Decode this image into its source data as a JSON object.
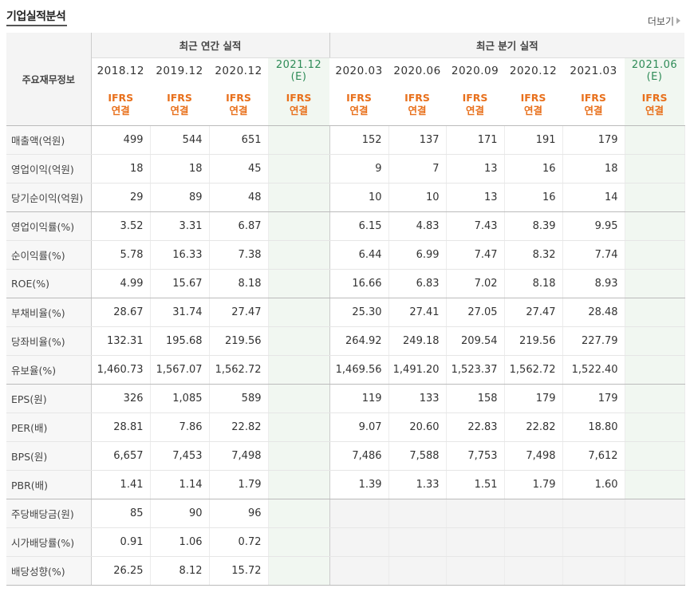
{
  "header": {
    "title": "기업실적분석",
    "more_label": "더보기"
  },
  "table": {
    "label_header": "주요재무정보",
    "group_annual": "최근 연간 실적",
    "group_quarter": "최근 분기 실적",
    "periods": [
      {
        "date": "2018.12"
      },
      {
        "date": "2019.12"
      },
      {
        "date": "2020.12"
      },
      {
        "date": "2021.12",
        "sub": "(E)"
      },
      {
        "date": "2020.03"
      },
      {
        "date": "2020.06"
      },
      {
        "date": "2020.09"
      },
      {
        "date": "2020.12"
      },
      {
        "date": "2021.03"
      },
      {
        "date": "2021.06",
        "sub": "(E)"
      }
    ],
    "ifrs_line1": "IFRS",
    "ifrs_line2": "연결",
    "rows": [
      {
        "label": "매출액(억원)",
        "values": [
          "499",
          "544",
          "651",
          "",
          "152",
          "137",
          "171",
          "191",
          "179",
          ""
        ]
      },
      {
        "label": "영업이익(억원)",
        "values": [
          "18",
          "18",
          "45",
          "",
          "9",
          "7",
          "13",
          "16",
          "18",
          ""
        ]
      },
      {
        "label": "당기순이익(억원)",
        "values": [
          "29",
          "89",
          "48",
          "",
          "10",
          "10",
          "13",
          "16",
          "14",
          ""
        ]
      },
      {
        "label": "영업이익률(%)",
        "values": [
          "3.52",
          "3.31",
          "6.87",
          "",
          "6.15",
          "4.83",
          "7.43",
          "8.39",
          "9.95",
          ""
        ]
      },
      {
        "label": "순이익률(%)",
        "values": [
          "5.78",
          "16.33",
          "7.38",
          "",
          "6.44",
          "6.99",
          "7.47",
          "8.32",
          "7.74",
          ""
        ]
      },
      {
        "label": "ROE(%)",
        "values": [
          "4.99",
          "15.67",
          "8.18",
          "",
          "16.66",
          "6.83",
          "7.02",
          "8.18",
          "8.93",
          ""
        ]
      },
      {
        "label": "부채비율(%)",
        "values": [
          "28.67",
          "31.74",
          "27.47",
          "",
          "25.30",
          "27.41",
          "27.05",
          "27.47",
          "28.48",
          ""
        ]
      },
      {
        "label": "당좌비율(%)",
        "values": [
          "132.31",
          "195.68",
          "219.56",
          "",
          "264.92",
          "249.18",
          "209.54",
          "219.56",
          "227.79",
          ""
        ]
      },
      {
        "label": "유보율(%)",
        "values": [
          "1,460.73",
          "1,567.07",
          "1,562.72",
          "",
          "1,469.56",
          "1,491.20",
          "1,523.37",
          "1,562.72",
          "1,522.40",
          ""
        ]
      },
      {
        "label": "EPS(원)",
        "values": [
          "326",
          "1,085",
          "589",
          "",
          "119",
          "133",
          "158",
          "179",
          "179",
          ""
        ]
      },
      {
        "label": "PER(배)",
        "values": [
          "28.81",
          "7.86",
          "22.82",
          "",
          "9.07",
          "20.60",
          "22.83",
          "22.82",
          "18.80",
          ""
        ]
      },
      {
        "label": "BPS(원)",
        "values": [
          "6,657",
          "7,453",
          "7,498",
          "",
          "7,486",
          "7,588",
          "7,753",
          "7,498",
          "7,612",
          ""
        ]
      },
      {
        "label": "PBR(배)",
        "values": [
          "1.41",
          "1.14",
          "1.79",
          "",
          "1.39",
          "1.33",
          "1.51",
          "1.79",
          "1.60",
          ""
        ]
      },
      {
        "label": "주당배당금(원)",
        "values": [
          "85",
          "90",
          "96",
          "",
          "",
          "",
          "",
          "",
          "",
          ""
        ]
      },
      {
        "label": "시가배당률(%)",
        "values": [
          "0.91",
          "1.06",
          "0.72",
          "",
          "",
          "",
          "",
          "",
          "",
          ""
        ]
      },
      {
        "label": "배당성향(%)",
        "values": [
          "26.25",
          "8.12",
          "15.72",
          "",
          "",
          "",
          "",
          "",
          "",
          ""
        ]
      }
    ]
  }
}
